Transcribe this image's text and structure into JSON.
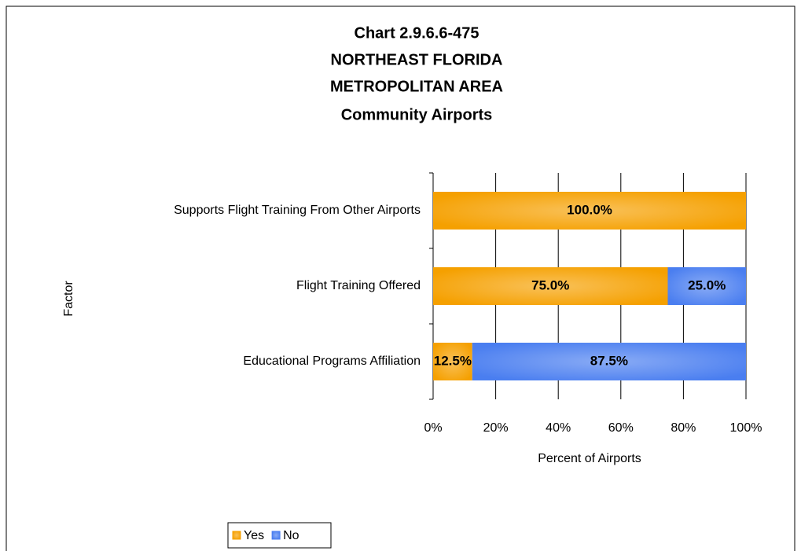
{
  "chart_data": {
    "type": "bar",
    "orientation": "horizontal",
    "stacked": true,
    "title": [
      "Chart 2.9.6.6-475",
      "NORTHEAST FLORIDA",
      "METROPOLITAN AREA",
      "Community Airports"
    ],
    "xlabel": "Percent of Airports",
    "ylabel": "Factor",
    "categories": [
      "Supports Flight Training From Other Airports",
      "Flight Training Offered",
      "Educational Programs Affiliation"
    ],
    "series": [
      {
        "name": "Yes",
        "color": "#f5a000",
        "values": [
          100,
          75,
          12.5
        ],
        "value_labels": [
          "100.0%",
          "75.0%",
          "12.5%"
        ]
      },
      {
        "name": "No",
        "color": "#4a7ef0",
        "values": [
          0,
          25,
          87.5
        ],
        "value_labels": [
          null,
          "25.0%",
          "87.5%"
        ]
      }
    ],
    "xlim": [
      0,
      100
    ],
    "xticks": [
      {
        "value": 0,
        "label": "0%"
      },
      {
        "value": 20,
        "label": "20%"
      },
      {
        "value": 40,
        "label": "40%"
      },
      {
        "value": 60,
        "label": "60%"
      },
      {
        "value": 80,
        "label": "80%"
      },
      {
        "value": 100,
        "label": "100%"
      }
    ],
    "grid": true,
    "legend": "bottom"
  }
}
